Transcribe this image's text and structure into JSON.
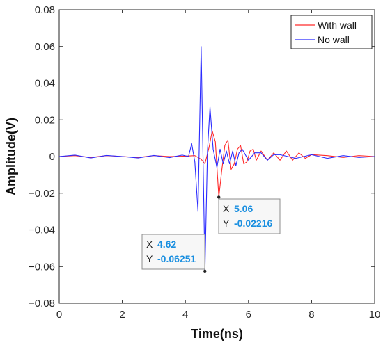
{
  "chart_data": {
    "type": "line",
    "title": "",
    "xlabel": "Time(ns)",
    "ylabel": "Amplitude(V)",
    "xlim": [
      0,
      10
    ],
    "ylim": [
      -0.08,
      0.08
    ],
    "x_ticks": [
      "0",
      "2",
      "4",
      "6",
      "8",
      "10"
    ],
    "y_ticks": [
      "0.08",
      "0.06",
      "0.04",
      "0.02",
      "0",
      "−0.02",
      "−0.04",
      "−0.06",
      "−0.08"
    ],
    "grid": false,
    "legend_position": "top-right",
    "series": [
      {
        "name": "With wall",
        "color": "#ff2a2a",
        "x": [
          0,
          0.5,
          1.0,
          1.5,
          2.0,
          2.5,
          3.0,
          3.5,
          4.0,
          4.3,
          4.5,
          4.62,
          4.75,
          4.85,
          4.95,
          5.06,
          5.15,
          5.25,
          5.35,
          5.45,
          5.55,
          5.65,
          5.75,
          5.85,
          5.95,
          6.05,
          6.15,
          6.25,
          6.4,
          6.6,
          6.8,
          7.0,
          7.2,
          7.4,
          7.6,
          7.8,
          8.0,
          8.5,
          9.0,
          9.5,
          10.0
        ],
        "y": [
          0.0,
          0.0005,
          -0.0005,
          0.0005,
          0.0,
          -0.0005,
          0.0005,
          0.0,
          0.0002,
          0.0005,
          -0.0015,
          -0.004,
          0.005,
          0.014,
          0.008,
          -0.02216,
          -0.008,
          0.006,
          0.009,
          -0.007,
          -0.004,
          0.004,
          0.006,
          -0.004,
          -0.003,
          0.003,
          0.004,
          -0.002,
          0.003,
          -0.002,
          0.002,
          -0.002,
          0.003,
          -0.002,
          0.002,
          -0.001,
          0.001,
          0.0005,
          -0.0005,
          0.0005,
          0.0
        ]
      },
      {
        "name": "No wall",
        "color": "#2a2aff",
        "x": [
          0,
          0.5,
          1.0,
          1.5,
          2.0,
          2.5,
          3.0,
          3.5,
          3.9,
          4.1,
          4.2,
          4.3,
          4.4,
          4.5,
          4.62,
          4.7,
          4.78,
          4.88,
          5.0,
          5.1,
          5.2,
          5.3,
          5.4,
          5.5,
          5.6,
          5.7,
          5.8,
          6.0,
          6.2,
          6.4,
          6.6,
          6.8,
          7.0,
          7.5,
          8.0,
          8.5,
          9.0,
          9.5,
          10.0
        ],
        "y": [
          0.0,
          0.0008,
          -0.0008,
          0.0006,
          0.0,
          -0.0008,
          0.0006,
          -0.0006,
          0.0008,
          0.0,
          0.007,
          -0.003,
          -0.03,
          0.06,
          -0.06251,
          0.003,
          0.027,
          0.004,
          -0.006,
          0.004,
          -0.004,
          0.003,
          -0.004,
          0.003,
          -0.005,
          0.002,
          0.004,
          -0.002,
          0.002,
          0.002,
          -0.002,
          0.001,
          0.001,
          -0.001,
          0.001,
          -0.001,
          0.0005,
          -0.0005,
          0.0
        ]
      }
    ],
    "annotations": [
      {
        "series": "With wall",
        "x_label": "X",
        "y_label": "Y",
        "x_text": "5.06",
        "y_text": "-0.02216",
        "x": 5.06,
        "y": -0.02216
      },
      {
        "series": "No wall",
        "x_label": "X",
        "y_label": "Y",
        "x_text": "4.62",
        "y_text": "-0.06251",
        "x": 4.62,
        "y": -0.06251
      }
    ]
  }
}
